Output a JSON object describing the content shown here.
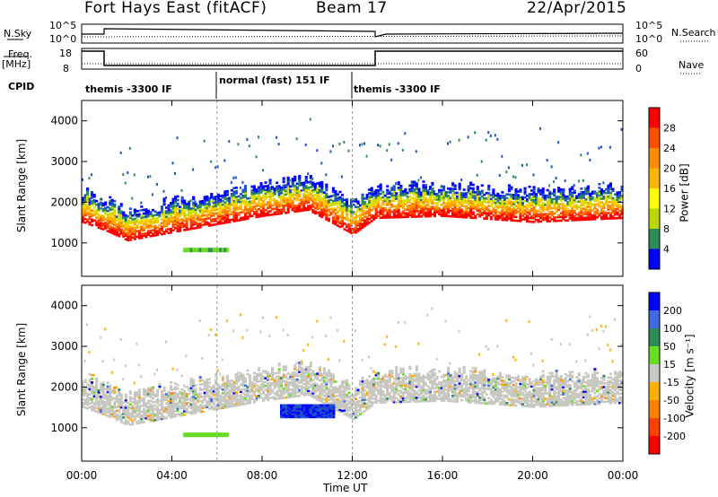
{
  "header": {
    "title": "Fort Hays East (fitACF)",
    "beam": "Beam 17",
    "date": "22/Apr/2015"
  },
  "top_panels": {
    "nsky_label": "N.Sky",
    "nsky_ticks": [
      "10^5",
      "10^0"
    ],
    "nsearch_label": "N.Search",
    "nsearch_ticks": [
      "10^5",
      "10^0"
    ],
    "freq_label": "Freq.",
    "freq_unit": "[MHz]",
    "freq_ticks": [
      "18",
      "8"
    ],
    "nave_label": "Nave",
    "nave_ticks": [
      "60",
      "0"
    ],
    "cpid_label": "CPID",
    "cpid_segments": [
      {
        "label": "themis -3300 IF",
        "start": 0,
        "end": 6
      },
      {
        "label": "normal (fast) 151 IF",
        "start": 6,
        "end": 12
      },
      {
        "label": "themis -3300 IF",
        "start": 12,
        "end": 24
      }
    ]
  },
  "chart_data": [
    {
      "type": "heatmap",
      "title": "",
      "xlabel": "Time UT",
      "ylabel": "Slant Range [km]",
      "xlim": [
        0,
        24
      ],
      "ylim": [
        180,
        4500
      ],
      "yticks": [
        "4000",
        "3000",
        "2000",
        "1000"
      ],
      "colorbar": {
        "label": "Power [dB]",
        "ticks": [
          "28",
          "24",
          "20",
          "16",
          "12",
          "8",
          "4"
        ],
        "colors": [
          "#ff0000",
          "#ff5000",
          "#ff8c00",
          "#ffb400",
          "#ffff00",
          "#b8d800",
          "#2e8b57",
          "#0000ff"
        ]
      },
      "features": {
        "main_band_lower_edge_km": [
          [
            0,
            1600
          ],
          [
            1,
            1400
          ],
          [
            2,
            1150
          ],
          [
            4,
            1350
          ],
          [
            6,
            1550
          ],
          [
            8,
            1750
          ],
          [
            10,
            1900
          ],
          [
            12,
            1300
          ],
          [
            13,
            1700
          ],
          [
            16,
            1750
          ],
          [
            20,
            1600
          ],
          [
            24,
            1700
          ]
        ]
      }
    },
    {
      "type": "heatmap",
      "title": "",
      "xlabel": "Time UT",
      "ylabel": "Slant Range [km]",
      "xlim": [
        0,
        24
      ],
      "ylim": [
        180,
        4500
      ],
      "yticks": [
        "4000",
        "3000",
        "2000",
        "1000"
      ],
      "colorbar": {
        "label": "Velocity [m s⁻¹]",
        "ticks": [
          "200",
          "100",
          "50",
          "15",
          "-15",
          "-50",
          "-100",
          "-200"
        ],
        "colors": [
          "#0000ff",
          "#4169e1",
          "#2e8b57",
          "#66dd22",
          "#c8c8c0",
          "#ffb000",
          "#ff8000",
          "#ff4000",
          "#ff0000"
        ]
      }
    }
  ],
  "x_axis": {
    "ticks": [
      "00:00",
      "04:00",
      "08:00",
      "12:00",
      "16:00",
      "20:00",
      "00:00"
    ],
    "label": "Time UT"
  }
}
